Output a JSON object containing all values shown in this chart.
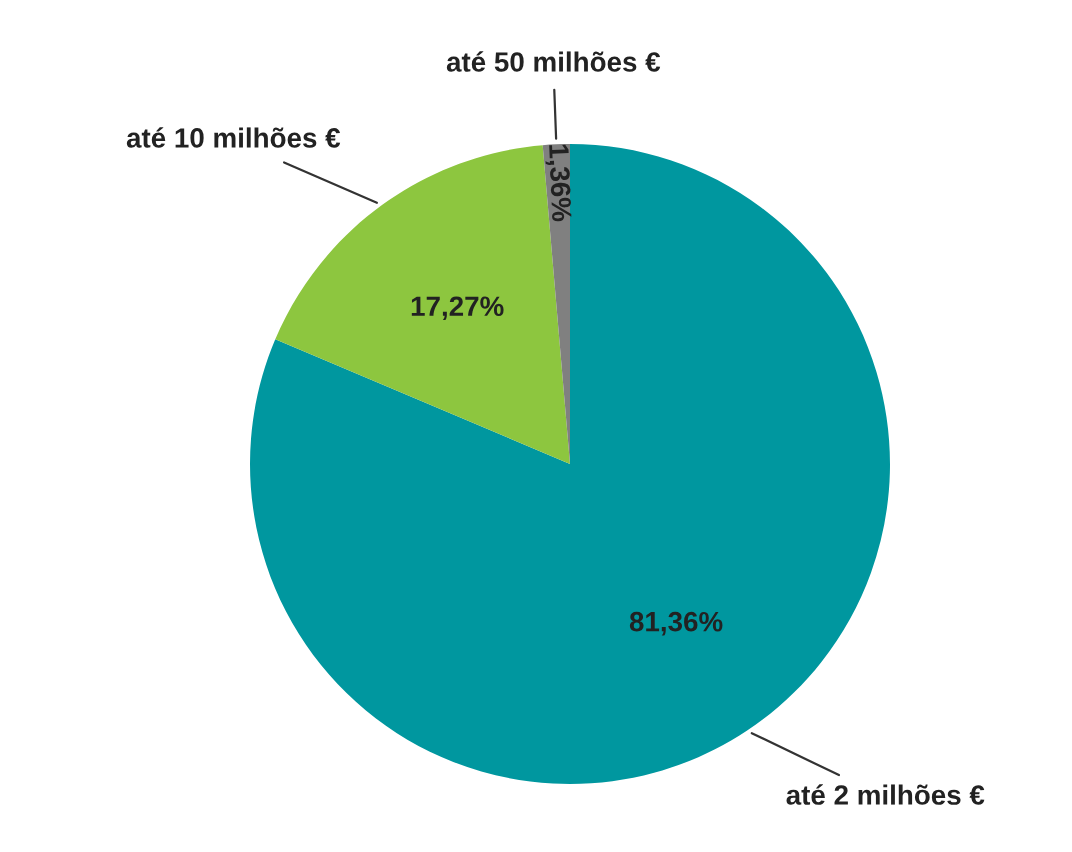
{
  "chart_data": {
    "type": "pie",
    "categories": [
      "até 2 milhões €",
      "até 10 milhões €",
      "até 50 milhões €"
    ],
    "values": [
      81.36,
      17.27,
      1.36
    ],
    "colors": [
      "#00979f",
      "#8dc63f",
      "#808080"
    ],
    "value_labels": [
      "81,36%",
      "17,27%",
      "1,36%"
    ]
  }
}
